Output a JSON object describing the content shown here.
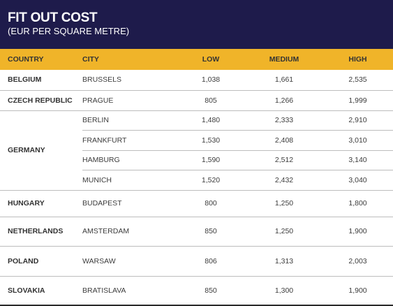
{
  "header": {
    "title": "FIT OUT COST",
    "subtitle": "(EUR PER SQUARE METRE)"
  },
  "colors": {
    "header_bg": "#1e1b4b",
    "column_header_bg": "#f0b429"
  },
  "chart_data": {
    "type": "table",
    "title": "FIT OUT COST",
    "subtitle": "(EUR PER SQUARE METRE)",
    "columns": [
      "COUNTRY",
      "CITY",
      "LOW",
      "MEDIUM",
      "HIGH"
    ],
    "groups": [
      {
        "country": "BELGIUM",
        "rows": [
          {
            "city": "BRUSSELS",
            "low": "1,038",
            "medium": "1,661",
            "high": "2,535"
          }
        ]
      },
      {
        "country": "CZECH REPUBLIC",
        "rows": [
          {
            "city": "PRAGUE",
            "low": "805",
            "medium": "1,266",
            "high": "1,999"
          }
        ]
      },
      {
        "country": "GERMANY",
        "rows": [
          {
            "city": "BERLIN",
            "low": "1,480",
            "medium": "2,333",
            "high": "2,910"
          },
          {
            "city": "FRANKFURT",
            "low": "1,530",
            "medium": "2,408",
            "high": "3,010"
          },
          {
            "city": "HAMBURG",
            "low": "1,590",
            "medium": "2,512",
            "high": "3,140"
          },
          {
            "city": "MUNICH",
            "low": "1,520",
            "medium": "2,432",
            "high": "3,040"
          }
        ]
      },
      {
        "country": "HUNGARY",
        "rows": [
          {
            "city": "BUDAPEST",
            "low": "800",
            "medium": "1,250",
            "high": "1,800"
          }
        ]
      },
      {
        "country": "NETHERLANDS",
        "rows": [
          {
            "city": "AMSTERDAM",
            "low": "850",
            "medium": "1,250",
            "high": "1,900"
          }
        ]
      },
      {
        "country": "POLAND",
        "rows": [
          {
            "city": "WARSAW",
            "low": "806",
            "medium": "1,313",
            "high": "2,003"
          }
        ]
      },
      {
        "country": "SLOVAKIA",
        "rows": [
          {
            "city": "BRATISLAVA",
            "low": "850",
            "medium": "1,300",
            "high": "1,900"
          }
        ]
      }
    ]
  }
}
